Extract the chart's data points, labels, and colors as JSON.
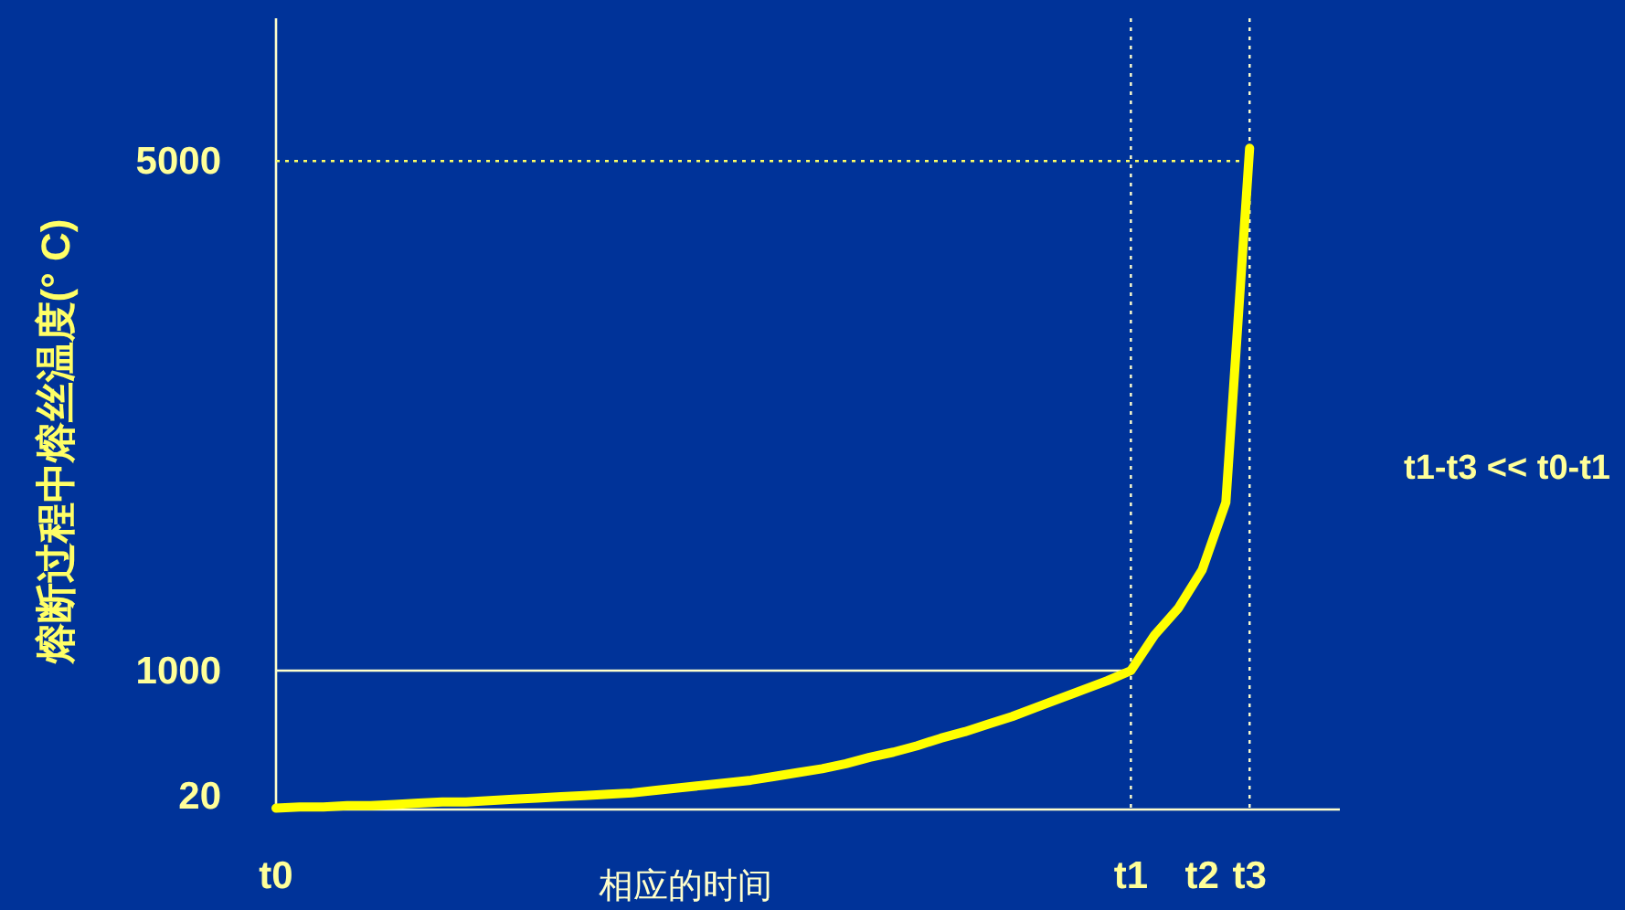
{
  "chart_data": {
    "type": "line",
    "ylabel": "熔断过程中熔丝温度(° C)",
    "xlabel": "相应的时间",
    "annotations": [
      "t1-t3 << t0-t1"
    ],
    "categories": [
      "t0",
      null,
      null,
      null,
      null,
      null,
      null,
      null,
      null,
      null,
      null,
      null,
      null,
      null,
      null,
      null,
      null,
      null,
      null,
      null,
      null,
      null,
      null,
      null,
      null,
      null,
      null,
      null,
      null,
      null,
      null,
      null,
      null,
      null,
      null,
      null,
      "t1",
      null,
      null,
      "t2",
      null,
      "t3"
    ],
    "series": [
      {
        "color": "#ffff00",
        "values": [
          -80,
          -70,
          -70,
          -60,
          -60,
          -50,
          -40,
          -30,
          -30,
          -20,
          -10,
          0,
          10,
          20,
          30,
          40,
          60,
          80,
          100,
          120,
          140,
          170,
          200,
          230,
          270,
          320,
          360,
          410,
          470,
          520,
          580,
          640,
          710,
          780,
          850,
          920,
          1000,
          1280,
          1490,
          1790,
          2320,
          5100
        ]
      }
    ],
    "ylim": [
      -90,
      6120
    ],
    "yticks": [
      20,
      1000,
      5000
    ],
    "ref_lines": [
      {
        "axis": "y",
        "value": 5000,
        "color": "#ffff66",
        "line_style": "dotted"
      },
      {
        "axis": "y",
        "value": 1000,
        "color": "#ffffcc",
        "line_style": "solid"
      },
      {
        "axis": "x",
        "value": "t1",
        "color": "#ffffcc",
        "line_style": "dotted"
      },
      {
        "axis": "x",
        "value": "t3",
        "color": "#ffffcc",
        "line_style": "dotted"
      }
    ],
    "line_style": "solid",
    "marker": "none",
    "grid": false
  }
}
